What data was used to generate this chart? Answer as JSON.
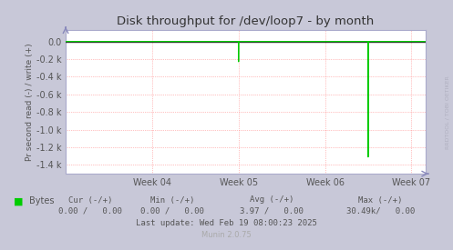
{
  "title": "Disk throughput for /dev/loop7 - by month",
  "ylabel": "Pr second read (-) / write (+)",
  "background_color": "#c8c8d8",
  "plot_background": "#ffffff",
  "grid_color": "#ff8888",
  "ylim": [
    -1500,
    130
  ],
  "yticks": [
    0,
    -200,
    -400,
    -600,
    -800,
    -1000,
    -1200,
    -1400
  ],
  "ytick_labels": [
    "0.0",
    "-0.2 k",
    "-0.4 k",
    "-0.6 k",
    "-0.8 k",
    "-1.0 k",
    "-1.2 k",
    "-1.4 k"
  ],
  "xlim": [
    0,
    700
  ],
  "xtick_positions": [
    168,
    336,
    504,
    672
  ],
  "xtick_labels": [
    "Week 04",
    "Week 05",
    "Week 06",
    "Week 07"
  ],
  "line_color": "#00cc00",
  "spike1_x": 336,
  "spike1_y": -230,
  "spike2_x": 588,
  "spike2_y": -1310,
  "legend_label": "Bytes",
  "legend_color": "#00cc00",
  "last_update": "Last update: Wed Feb 19 08:00:23 2025",
  "munin_version": "Munin 2.0.75",
  "border_color": "#aaaacc",
  "title_color": "#333333",
  "axis_label_color": "#555555",
  "tick_color": "#555555",
  "watermark": "RRDTOOL / TOBI OETIKER",
  "top_line_color": "#333333",
  "arrow_color": "#8888bb",
  "cur_label": "Cur (-/+)",
  "cur_val": "0.00 /   0.00",
  "min_label": "Min (-/+)",
  "min_val": "0.00 /   0.00",
  "avg_label": "Avg (-/+)",
  "avg_val": "3.97 /   0.00",
  "max_label": "Max (-/+)",
  "max_val": "30.49k/   0.00"
}
